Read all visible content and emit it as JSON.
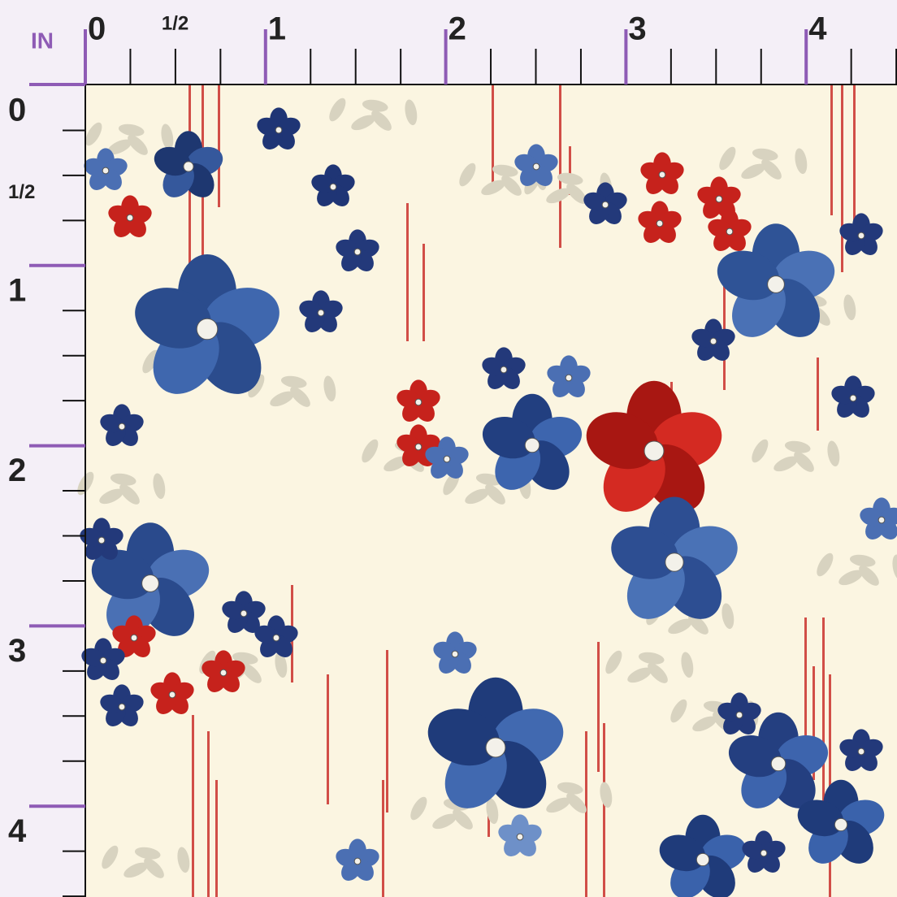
{
  "ruler": {
    "unit": "IN",
    "top_labels": [
      "0",
      "1/2",
      "1",
      "2",
      "3",
      "4"
    ],
    "left_labels": [
      "0",
      "1/2",
      "1",
      "2",
      "3",
      "4"
    ]
  }
}
